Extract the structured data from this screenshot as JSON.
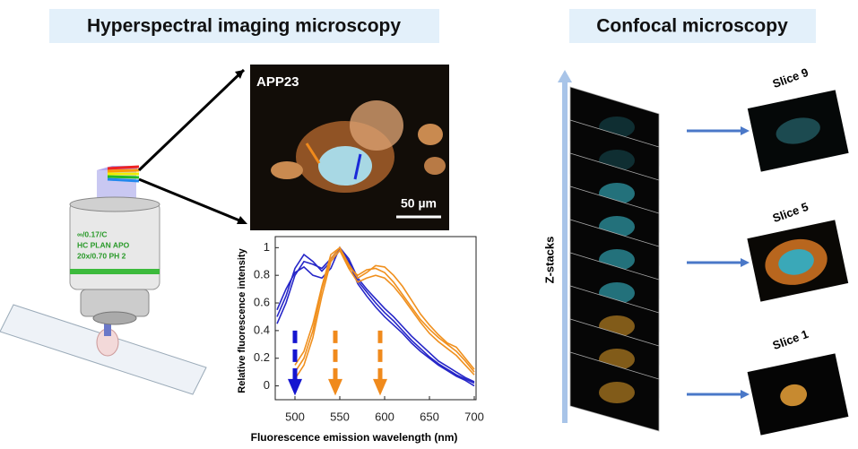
{
  "headers": [
    "Hyperspectral imaging microscopy",
    "Confocal microscopy"
  ],
  "objective_label": [
    "∞/0.17/C",
    "HC PLAN APO",
    "20x/0.70 PH 2"
  ],
  "micrograph": {
    "label": "APP23",
    "scale_bar": "50 µm"
  },
  "confocal": {
    "axis_label": "Z-stacks",
    "slices": [
      "Slice 9",
      "Slice 5",
      "Slice 1"
    ]
  },
  "chart_data": {
    "type": "line",
    "x_label": "Fluorescence emission wavelength (nm)",
    "y_label": "Relative fluorescence intensity",
    "x": [
      480,
      490,
      500,
      510,
      520,
      530,
      540,
      550,
      560,
      570,
      580,
      590,
      600,
      610,
      620,
      630,
      640,
      650,
      660,
      670,
      680,
      690,
      700
    ],
    "series": [
      {
        "color": "#2626c8",
        "values": [
          0.45,
          0.6,
          0.8,
          0.9,
          0.88,
          0.85,
          0.92,
          1,
          0.92,
          0.78,
          0.7,
          0.63,
          0.56,
          0.5,
          0.43,
          0.36,
          0.3,
          0.24,
          0.18,
          0.14,
          0.1,
          0.06,
          0.03
        ]
      },
      {
        "color": "#2626c8",
        "values": [
          0.5,
          0.65,
          0.85,
          0.95,
          0.9,
          0.83,
          0.9,
          0.98,
          0.9,
          0.76,
          0.68,
          0.6,
          0.53,
          0.47,
          0.4,
          0.33,
          0.27,
          0.21,
          0.16,
          0.12,
          0.08,
          0.05,
          0.02
        ]
      },
      {
        "color": "#2626c8",
        "values": [
          0.55,
          0.7,
          0.82,
          0.86,
          0.8,
          0.78,
          0.85,
          1,
          0.9,
          0.74,
          0.65,
          0.57,
          0.5,
          0.44,
          0.38,
          0.31,
          0.25,
          0.2,
          0.15,
          0.11,
          0.07,
          0.04,
          0
        ]
      },
      {
        "color": "#f0901e",
        "values": [
          null,
          null,
          0.1,
          0.2,
          0.4,
          0.7,
          0.92,
          1,
          0.88,
          0.78,
          0.82,
          0.87,
          0.86,
          0.8,
          0.72,
          0.62,
          0.52,
          0.44,
          0.37,
          0.31,
          0.28,
          0.2,
          0.12
        ]
      },
      {
        "color": "#f0901e",
        "values": [
          null,
          null,
          0.05,
          0.15,
          0.35,
          0.65,
          0.9,
          0.98,
          0.85,
          0.75,
          0.78,
          0.8,
          0.78,
          0.72,
          0.64,
          0.55,
          0.46,
          0.38,
          0.32,
          0.27,
          0.22,
          0.15,
          0.08
        ]
      },
      {
        "color": "#f0901e",
        "values": [
          null,
          null,
          0.15,
          0.25,
          0.45,
          0.72,
          0.95,
          1,
          0.86,
          0.8,
          0.84,
          0.85,
          0.82,
          0.75,
          0.66,
          0.57,
          0.48,
          0.41,
          0.35,
          0.3,
          0.25,
          0.18,
          0.1
        ]
      }
    ],
    "arrow_markers": [
      {
        "x": 500,
        "color": "#1515d0"
      },
      {
        "x": 545,
        "color": "#f08a1c"
      },
      {
        "x": 595,
        "color": "#f08a1c"
      }
    ],
    "xlim": [
      478,
      702
    ],
    "ylim": [
      -0.1,
      1.08
    ],
    "xticks": [
      500,
      550,
      600,
      650,
      700
    ],
    "yticks": [
      0,
      0.2,
      0.4,
      0.6,
      0.8,
      1
    ]
  }
}
